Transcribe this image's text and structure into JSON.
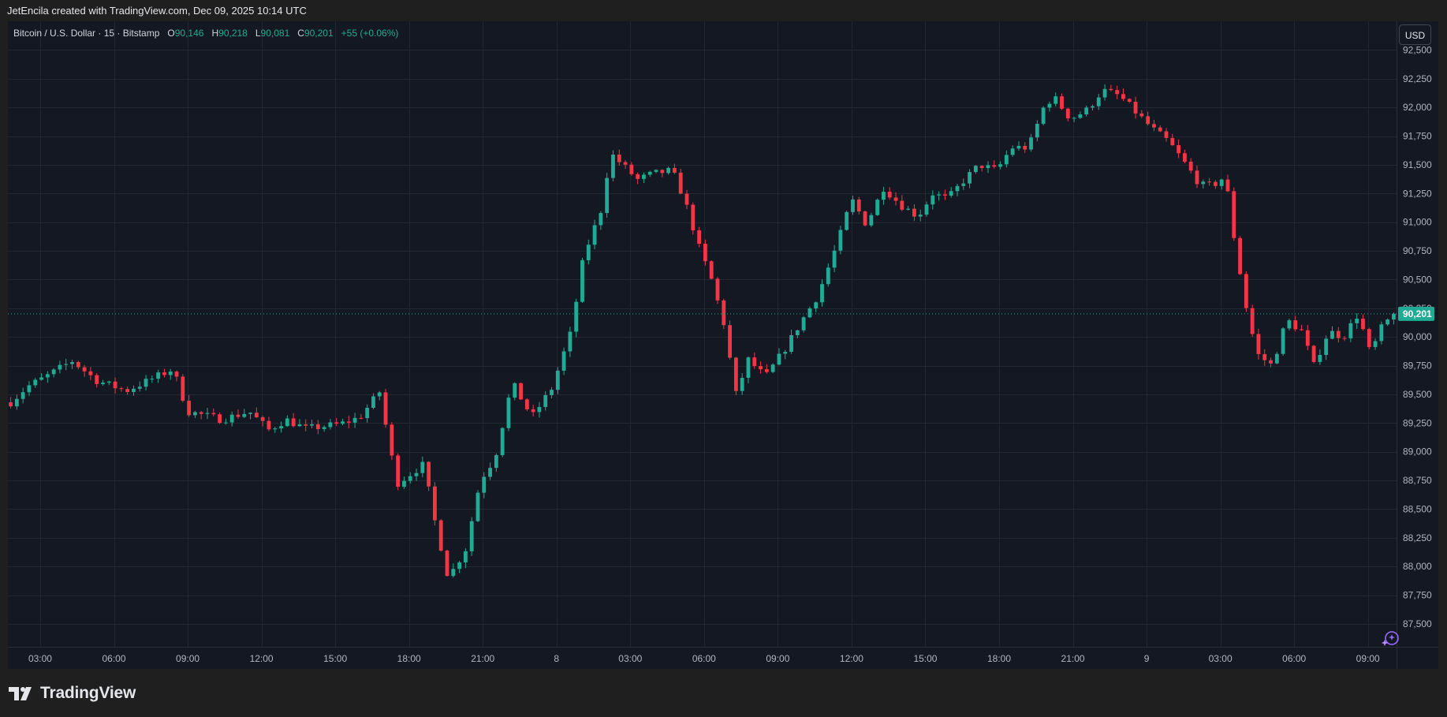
{
  "header": {
    "attribution": "JetEncila created with TradingView.com, Dec 09, 2025 10:14 UTC"
  },
  "legend": {
    "symbol": "Bitcoin / U.S. Dollar · 15 · Bitstamp",
    "o_label": "O",
    "o_value": "90,146",
    "h_label": "H",
    "h_value": "90,218",
    "l_label": "L",
    "l_value": "90,081",
    "c_label": "C",
    "c_value": "90,201",
    "change": "+55 (+0.06%)"
  },
  "currency_button": "USD",
  "brand": {
    "name": "TradingView"
  },
  "colors": {
    "up": "#22ab94",
    "down": "#f23645",
    "background": "#141823",
    "grid": "#232734",
    "last_price_line": "#22ab94"
  },
  "icons": [
    "tradingview-logo-icon",
    "ai-sparkle-icon"
  ],
  "chart_data": {
    "type": "candlestick",
    "symbol": "BTC/USD",
    "interval": "15",
    "exchange": "Bitstamp",
    "last_price": 90201,
    "last_price_label": "90,201",
    "ylim": [
      87300,
      92750
    ],
    "y_ticks": [
      87500,
      87750,
      88000,
      88250,
      88500,
      88750,
      89000,
      89250,
      89500,
      89750,
      90000,
      90250,
      90500,
      90750,
      91000,
      91250,
      91500,
      91750,
      92000,
      92250,
      92500
    ],
    "y_tick_labels": [
      "87,500",
      "87,750",
      "88,000",
      "88,250",
      "88,500",
      "88,750",
      "89,000",
      "89,250",
      "89,500",
      "89,750",
      "90,000",
      "90,250",
      "90,500",
      "90,750",
      "91,000",
      "91,250",
      "91,500",
      "91,750",
      "92,000",
      "92,250",
      "92,500"
    ],
    "x_tick_labels": [
      "03:00",
      "06:00",
      "09:00",
      "12:00",
      "15:00",
      "18:00",
      "21:00",
      "8",
      "03:00",
      "06:00",
      "09:00",
      "12:00",
      "15:00",
      "18:00",
      "21:00",
      "9",
      "03:00",
      "06:00",
      "09:00"
    ],
    "x_tick_hours": [
      3,
      6,
      9,
      12,
      15,
      18,
      21,
      24,
      27,
      30,
      33,
      36,
      39,
      42,
      45,
      48,
      51,
      54,
      57
    ],
    "time_range_hours": [
      1.75,
      58.1
    ],
    "candle_interval_hours": 0.25,
    "anchors": [
      [
        1.8,
        89430
      ],
      [
        2.5,
        89570
      ],
      [
        3.2,
        89650
      ],
      [
        4.3,
        89790
      ],
      [
        5.3,
        89620
      ],
      [
        6.5,
        89530
      ],
      [
        7.2,
        89600
      ],
      [
        8.4,
        89720
      ],
      [
        9.0,
        89350
      ],
      [
        10.4,
        89280
      ],
      [
        11.5,
        89350
      ],
      [
        12.3,
        89190
      ],
      [
        13.0,
        89280
      ],
      [
        13.8,
        89200
      ],
      [
        15.2,
        89240
      ],
      [
        16.0,
        89300
      ],
      [
        16.8,
        89520
      ],
      [
        17.5,
        88720
      ],
      [
        18.6,
        88890
      ],
      [
        19.0,
        88440
      ],
      [
        19.6,
        87900
      ],
      [
        20.3,
        88150
      ],
      [
        20.9,
        88750
      ],
      [
        21.5,
        88950
      ],
      [
        22.2,
        89600
      ],
      [
        23.0,
        89300
      ],
      [
        23.8,
        89550
      ],
      [
        24.6,
        90050
      ],
      [
        25.1,
        90700
      ],
      [
        25.8,
        91100
      ],
      [
        26.2,
        91600
      ],
      [
        27.3,
        91370
      ],
      [
        27.9,
        91420
      ],
      [
        28.7,
        91450
      ],
      [
        29.2,
        91200
      ],
      [
        29.8,
        90780
      ],
      [
        30.3,
        90500
      ],
      [
        30.8,
        90120
      ],
      [
        31.3,
        89500
      ],
      [
        31.8,
        89800
      ],
      [
        32.5,
        89650
      ],
      [
        33.3,
        89900
      ],
      [
        34.0,
        90150
      ],
      [
        34.6,
        90350
      ],
      [
        35.4,
        90800
      ],
      [
        36.0,
        91200
      ],
      [
        36.6,
        90980
      ],
      [
        37.3,
        91300
      ],
      [
        38.0,
        91150
      ],
      [
        38.7,
        91050
      ],
      [
        39.3,
        91250
      ],
      [
        39.9,
        91200
      ],
      [
        40.5,
        91350
      ],
      [
        41.2,
        91500
      ],
      [
        41.9,
        91450
      ],
      [
        42.5,
        91650
      ],
      [
        43.2,
        91650
      ],
      [
        43.9,
        92050
      ],
      [
        44.3,
        92070
      ],
      [
        44.9,
        91900
      ],
      [
        45.6,
        91980
      ],
      [
        46.2,
        92150
      ],
      [
        46.9,
        92100
      ],
      [
        47.6,
        91950
      ],
      [
        48.2,
        91820
      ],
      [
        48.9,
        91700
      ],
      [
        49.6,
        91500
      ],
      [
        50.2,
        91320
      ],
      [
        50.7,
        91320
      ],
      [
        51.2,
        91400
      ],
      [
        51.6,
        90800
      ],
      [
        52.1,
        90200
      ],
      [
        52.5,
        89850
      ],
      [
        53.1,
        89750
      ],
      [
        53.7,
        90150
      ],
      [
        54.3,
        90050
      ],
      [
        54.8,
        89750
      ],
      [
        55.4,
        90050
      ],
      [
        56.0,
        90000
      ],
      [
        56.6,
        90200
      ],
      [
        57.1,
        89850
      ],
      [
        57.6,
        90100
      ],
      [
        58.1,
        90201
      ]
    ]
  }
}
